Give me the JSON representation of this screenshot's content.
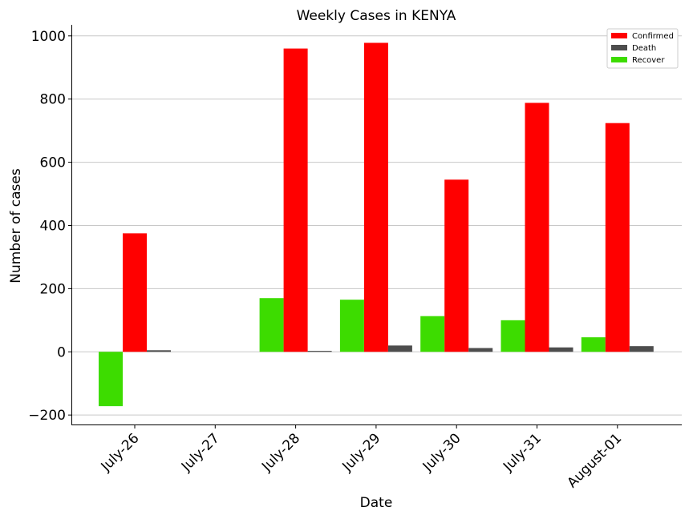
{
  "chart_data": {
    "type": "bar",
    "title": "Weekly Cases in KENYA",
    "xlabel": "Date",
    "ylabel": "Number of cases",
    "categories": [
      "July-26",
      "July-27",
      "July-28",
      "July-29",
      "July-30",
      "July-31",
      "August-01"
    ],
    "series": [
      {
        "name": "Recover",
        "color": "#3ddc00",
        "values": [
          -172,
          0,
          170,
          165,
          113,
          100,
          46
        ]
      },
      {
        "name": "Confirmed",
        "color": "#ff0000",
        "values": [
          375,
          0,
          960,
          978,
          545,
          788,
          724
        ]
      },
      {
        "name": "Death",
        "color": "#4d4d4d",
        "values": [
          5,
          0,
          3,
          20,
          12,
          14,
          18
        ]
      }
    ],
    "legend_order": [
      "Confirmed",
      "Death",
      "Recover"
    ],
    "legend_position": "top-right",
    "ylim": [
      -230,
      1035
    ],
    "yticks": [
      -200,
      0,
      200,
      400,
      600,
      800,
      1000
    ],
    "ytick_labels": [
      "−200",
      "0",
      "200",
      "400",
      "600",
      "800",
      "1000"
    ],
    "grid": "horizontal"
  }
}
